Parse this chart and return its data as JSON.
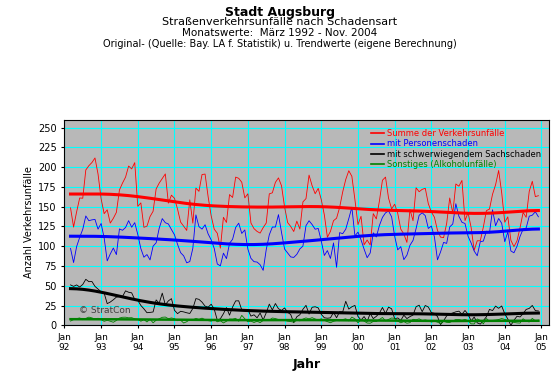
{
  "title_lines": [
    "Stadt Augsburg",
    "Straßenverkehrsunfälle nach Schadensart",
    "Monatswerte:  März 1992 - Nov. 2004",
    "Original- (Quelle: Bay. LA f. Statistik) u. Trendwerte (eigene Berechnung)"
  ],
  "xlabel": "Jahr",
  "ylabel": "Anzahl Verkehrsunfälle",
  "ylim": [
    0,
    260
  ],
  "yticks": [
    0,
    25,
    50,
    75,
    100,
    125,
    150,
    175,
    200,
    225,
    250
  ],
  "bg_white": "#ffffff",
  "plot_bg_color": "#b8b8b8",
  "grid_color": "#00ffff",
  "legend_labels": [
    "Summe der Verkehrsunfälle",
    "mit Personenschaden",
    "mit schwerwiegendem Sachschaden",
    "Sonstiges (Alkoholunfälle)"
  ],
  "legend_colors": [
    "red",
    "blue",
    "black",
    "green"
  ],
  "watermark": "© StratCon",
  "n_months": 154,
  "start_year": 1992,
  "start_month": 3
}
